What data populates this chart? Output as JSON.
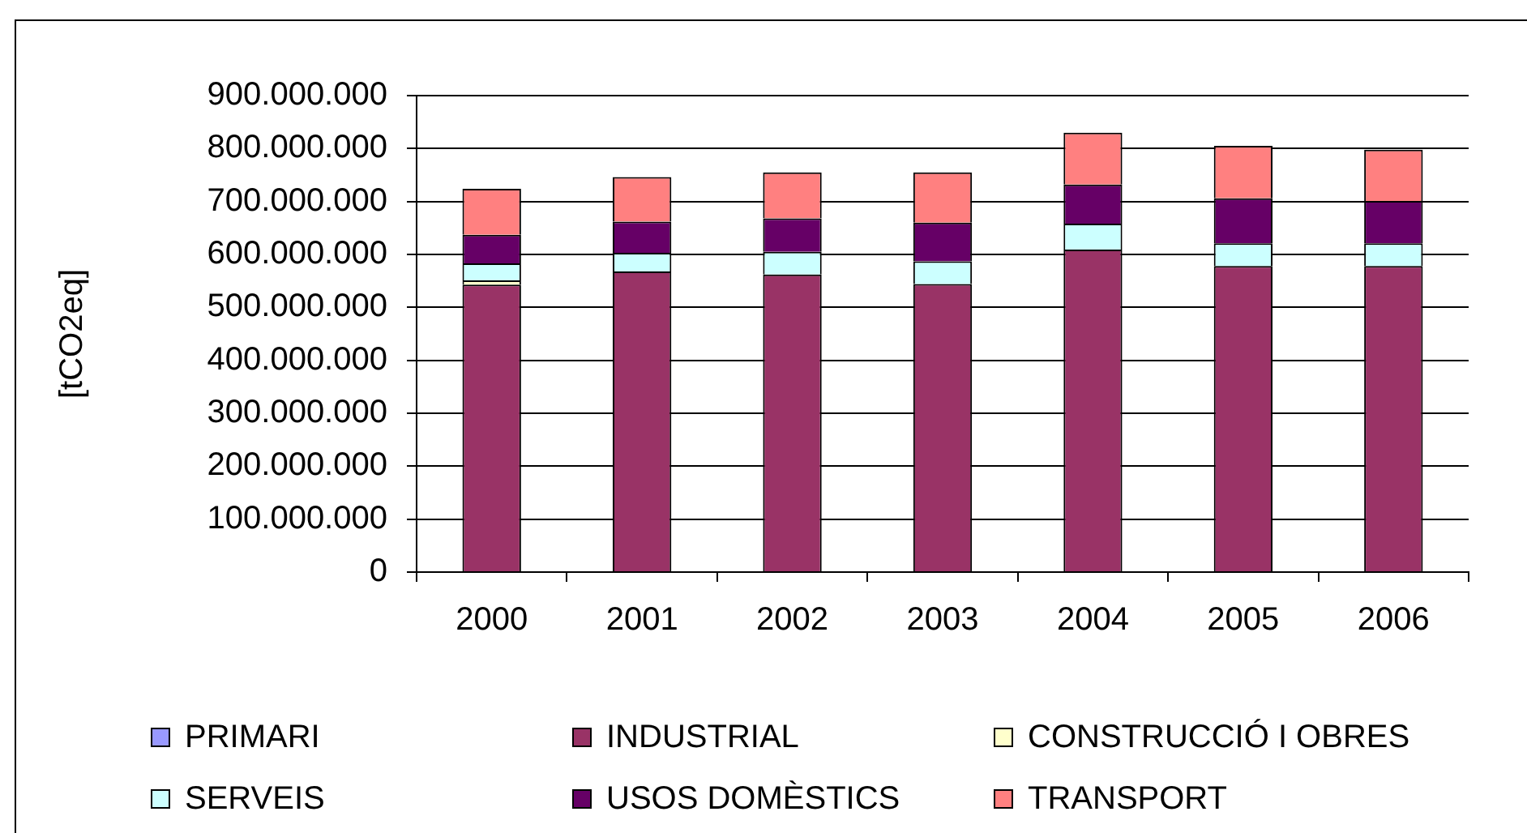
{
  "chart_data": {
    "type": "bar",
    "stacked": true,
    "ylabel": "[tCO2eq]",
    "categories": [
      "2000",
      "2001",
      "2002",
      "2003",
      "2004",
      "2005",
      "2006"
    ],
    "series": [
      {
        "name": "PRIMARI",
        "color": "#9999ff",
        "values": [
          null,
          null,
          null,
          null,
          null,
          null,
          null
        ]
      },
      {
        "name": "INDUSTRIAL",
        "color": "#993366",
        "values": [
          543000000,
          568000000,
          562000000,
          544000000,
          609000000,
          578000000,
          578000000
        ]
      },
      {
        "name": "CONSTRUCCIÓ I OBRES",
        "color": "#ffffcc",
        "values": [
          8000000,
          null,
          null,
          null,
          null,
          null,
          null
        ]
      },
      {
        "name": "SERVEIS",
        "color": "#ccffff",
        "values": [
          32000000,
          35000000,
          43000000,
          43000000,
          49000000,
          43000000,
          43000000
        ]
      },
      {
        "name": "USOS DOMÈSTICS",
        "color": "#660066",
        "values": [
          54000000,
          59000000,
          63000000,
          73000000,
          74000000,
          85000000,
          80000000
        ]
      },
      {
        "name": "TRANSPORT",
        "color": "#ff8080",
        "values": [
          87000000,
          84000000,
          87000000,
          95000000,
          98000000,
          99000000,
          97000000
        ]
      }
    ],
    "ylim": [
      0,
      900000000
    ],
    "yticks": [
      0,
      {
        "value": 100000000,
        "label": "100.000.000"
      },
      {
        "value": 200000000,
        "label": "200.000.000"
      },
      {
        "value": 300000000,
        "label": "300.000.000"
      },
      {
        "value": 400000000,
        "label": "400.000.000"
      },
      {
        "value": 500000000,
        "label": "500.000.000"
      },
      {
        "value": 600000000,
        "label": "600.000.000"
      },
      {
        "value": 700000000,
        "label": "700.000.000"
      },
      {
        "value": 800000000,
        "label": "800.000.000"
      },
      {
        "value": 900000000,
        "label": "900.000.000"
      }
    ],
    "grid": "y",
    "legend": "bottom"
  }
}
